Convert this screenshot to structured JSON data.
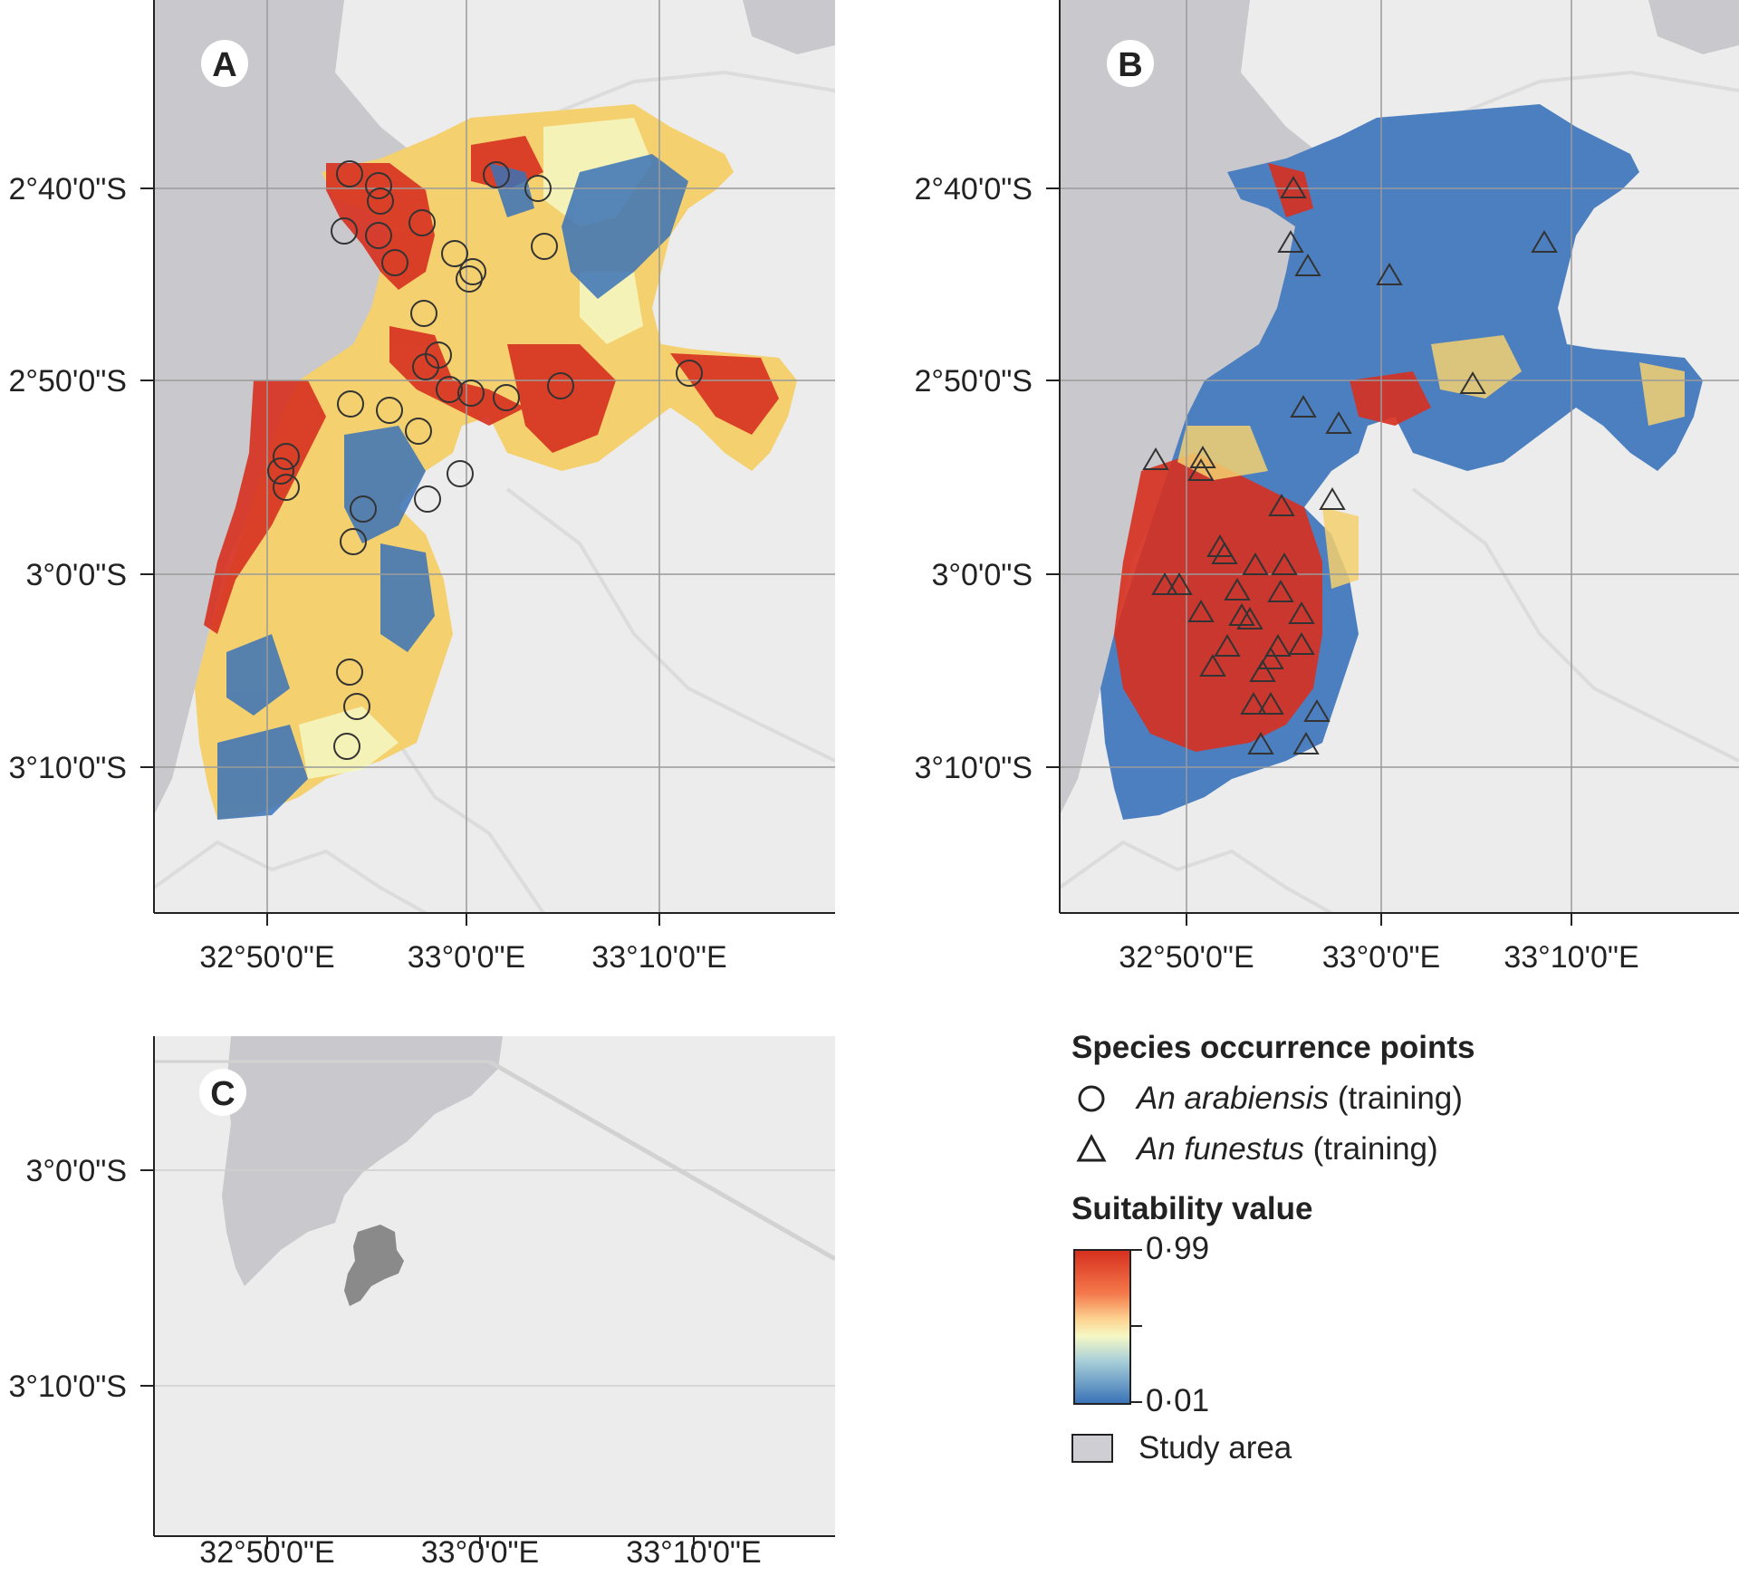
{
  "panels": [
    {
      "id": "A",
      "label": "A",
      "y_ticks": [
        "2°40'0\"S",
        "2°50'0\"S",
        "3°0'0\"S",
        "3°10'0\"S"
      ],
      "x_ticks": [
        "32°50'0\"E",
        "33°0'0\"E",
        "33°10'0\"E"
      ],
      "symbol": "circle"
    },
    {
      "id": "B",
      "label": "B",
      "y_ticks": [
        "2°40'0\"S",
        "2°50'0\"S",
        "3°0'0\"S",
        "3°10'0\"S"
      ],
      "x_ticks": [
        "32°50'0\"E",
        "33°0'0\"E",
        "33°10'0\"E"
      ],
      "symbol": "triangle"
    },
    {
      "id": "C",
      "label": "C",
      "y_ticks": [
        "3°0'0\"S",
        "3°10'0\"S"
      ],
      "x_ticks": [
        "32°50'0\"E",
        "33°0'0\"E",
        "33°10'0\"E"
      ],
      "symbol": "none"
    }
  ],
  "legend": {
    "occurrence_title": "Species occurrence points",
    "species": [
      {
        "symbol": "circle",
        "name": "An arabiensis",
        "suffix": "(training)"
      },
      {
        "symbol": "triangle",
        "name": "An funestus",
        "suffix": "(training)"
      }
    ],
    "suitability_title": "Suitability value",
    "max_label": "0·99",
    "min_label": "0·01",
    "study_area_label": "Study area"
  },
  "colors": {
    "high": "#d7301f",
    "mid": "#f5f8c4",
    "low": "#3a73b8",
    "basemap": "#ececec",
    "water": "#c9c9cd",
    "roads": "#dcdcdc",
    "study_area": "#8a8a8a"
  }
}
